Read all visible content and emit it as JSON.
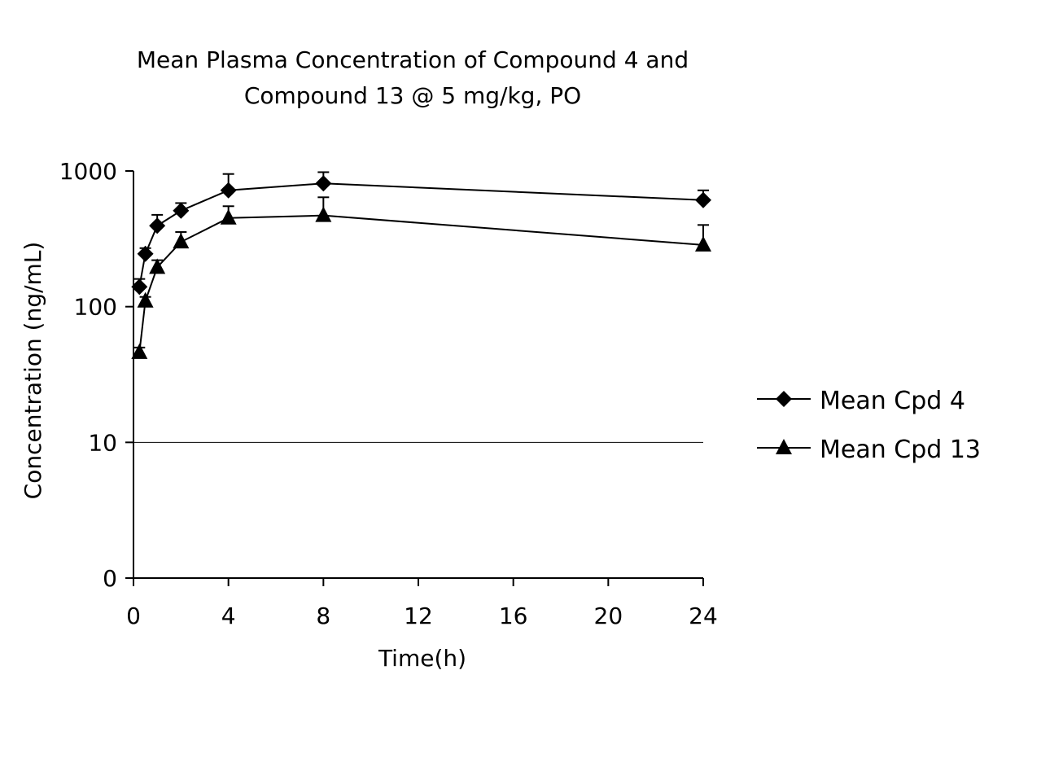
{
  "chart_data": {
    "type": "line",
    "title": [
      "Mean Plasma Concentration of Compound 4 and",
      "Compound 13 @ 5 mg/kg, PO"
    ],
    "xlabel": "Time(h)",
    "ylabel": "Concentration (ng/mL)",
    "xlim": [
      0,
      24
    ],
    "x_ticks": [
      0,
      4,
      8,
      12,
      16,
      20,
      24
    ],
    "y_scale": "log",
    "y_ticks": [
      0,
      10,
      100,
      1000
    ],
    "grid": "horizontal line at 10 only",
    "legend_position": "right",
    "series": [
      {
        "name": "Mean Cpd 4",
        "marker": "diamond",
        "x": [
          0.25,
          0.5,
          1,
          2,
          4,
          8,
          24
        ],
        "y": [
          140,
          245,
          395,
          510,
          720,
          810,
          610
        ],
        "error_upper": [
          160,
          270,
          475,
          580,
          950,
          980,
          720
        ]
      },
      {
        "name": "Mean Cpd 13",
        "marker": "triangle",
        "x": [
          0.25,
          0.5,
          1,
          2,
          4,
          8,
          24
        ],
        "y": [
          46,
          110,
          195,
          300,
          450,
          470,
          285
        ],
        "error_upper": [
          50,
          118,
          220,
          355,
          550,
          640,
          400
        ]
      }
    ]
  }
}
